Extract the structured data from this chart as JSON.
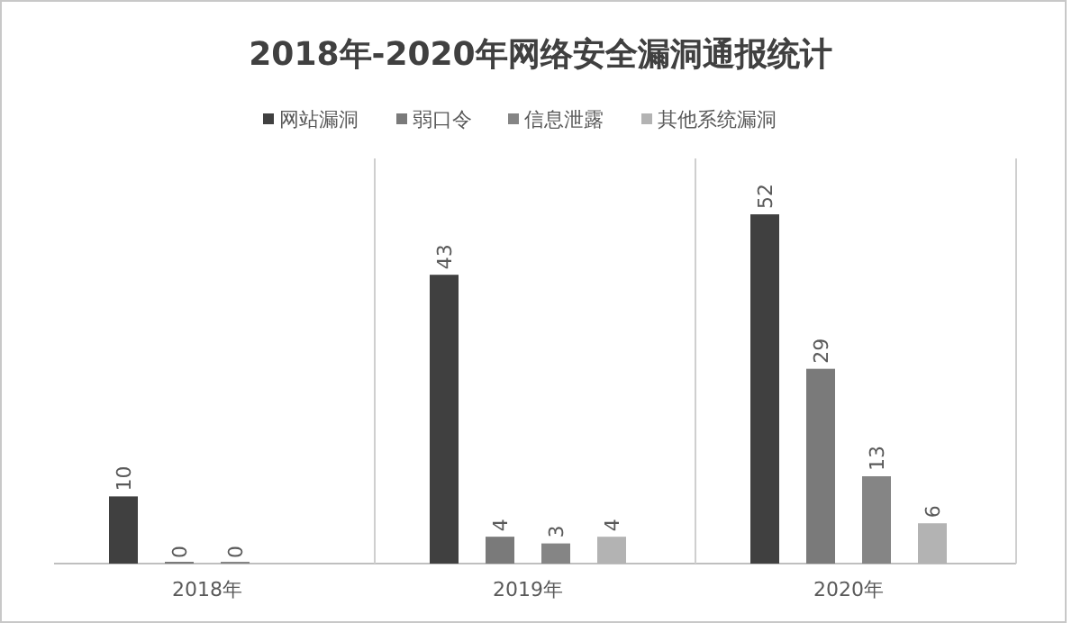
{
  "chart_data": {
    "type": "bar",
    "title": "2018年-2020年网络安全漏洞通报统计",
    "categories": [
      "2018年",
      "2019年",
      "2020年"
    ],
    "series": [
      {
        "name": "网站漏洞",
        "color": "#404040",
        "values": [
          10,
          43,
          52
        ]
      },
      {
        "name": "弱口令",
        "color": "#7a7a7a",
        "values": [
          0,
          4,
          29
        ]
      },
      {
        "name": "信息泄露",
        "color": "#858585",
        "values": [
          0,
          3,
          13
        ]
      },
      {
        "name": "其他系统漏洞",
        "color": "#b3b3b3",
        "values": [
          null,
          4,
          6
        ]
      }
    ],
    "data_labels": true,
    "grid": false,
    "legend": "top"
  }
}
